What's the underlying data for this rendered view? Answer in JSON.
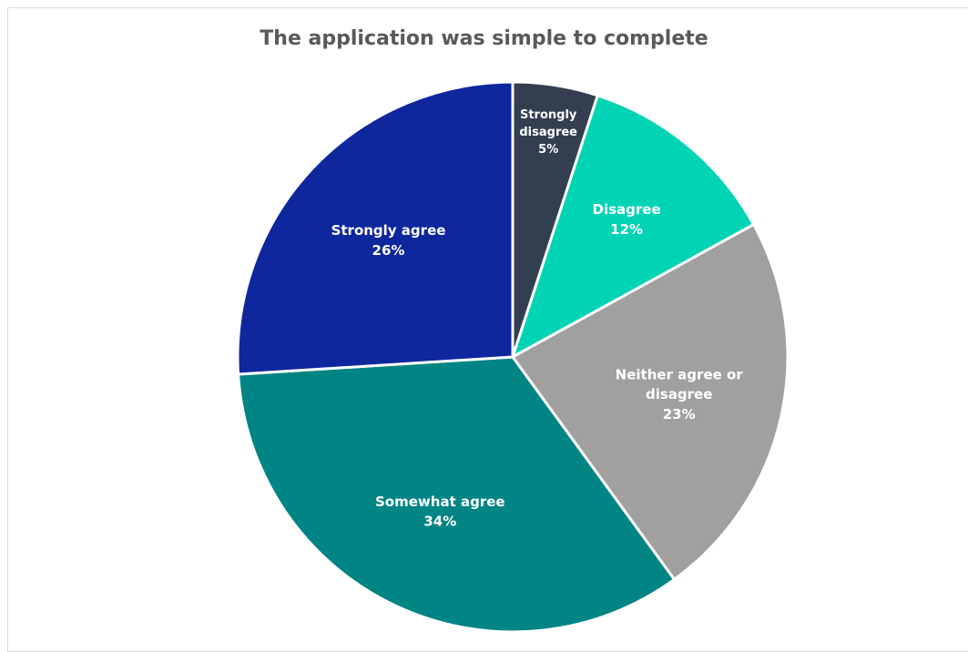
{
  "chart_data": {
    "type": "pie",
    "title": "The application was simple to complete",
    "categories": [
      "Strongly disagree",
      "Disagree",
      "Neither agree or disagree",
      "Somewhat agree",
      "Strongly agree"
    ],
    "values": [
      5,
      12,
      23,
      34,
      26
    ],
    "value_labels": [
      "5%",
      "12%",
      "23%",
      "34%",
      "26%"
    ],
    "colors": [
      "#333f50",
      "#00d4b4",
      "#a0a0a0",
      "#008584",
      "#0e279c"
    ],
    "start_angle_deg": 0,
    "direction": "clockwise",
    "legend": "none",
    "data_labels": "inside"
  }
}
